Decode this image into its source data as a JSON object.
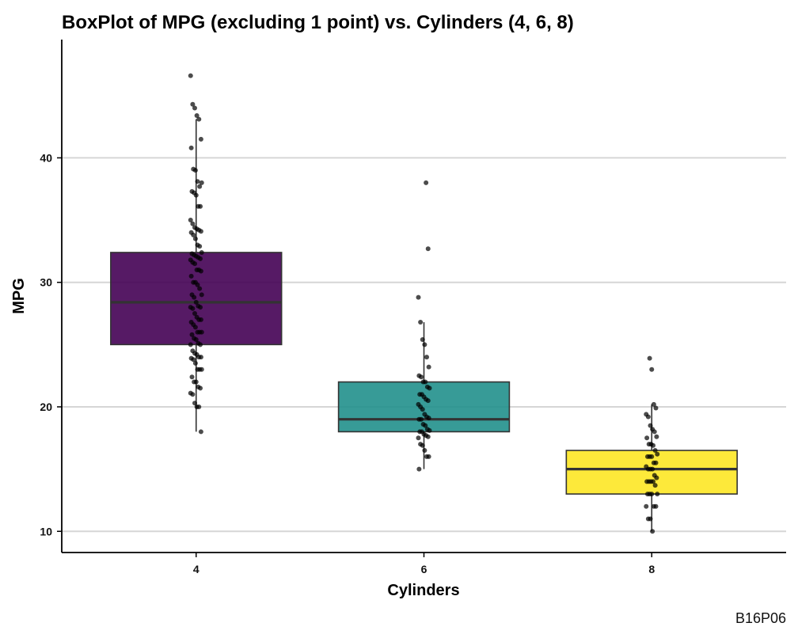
{
  "chart_data": {
    "type": "box",
    "title": "BoxPlot of MPG (excluding 1 point) vs. Cylinders (4, 6, 8)",
    "xlabel": "Cylinders",
    "ylabel": "MPG",
    "caption": "B16P06",
    "categories": [
      "4",
      "6",
      "8"
    ],
    "ylim": [
      8.3,
      49.5
    ],
    "yticks": [
      10,
      20,
      30,
      40
    ],
    "grid": "horizontal major",
    "boxes": [
      {
        "category": "4",
        "color": "#440154",
        "q1": 25.0,
        "median": 28.4,
        "q3": 32.4,
        "whisker_low": 18.0,
        "whisker_high": 43.1
      },
      {
        "category": "6",
        "color": "#21908C",
        "q1": 18.0,
        "median": 19.0,
        "q3": 22.0,
        "whisker_low": 15.0,
        "whisker_high": 26.8
      },
      {
        "category": "8",
        "color": "#FDE725",
        "q1": 13.0,
        "median": 15.0,
        "q3": 16.5,
        "whisker_low": 10.0,
        "whisker_high": 20.2
      }
    ],
    "points": [
      {
        "category": "4",
        "y": [
          46.6,
          44.3,
          44.0,
          43.4,
          43.1,
          41.5,
          40.8,
          39.1,
          39.0,
          38.1,
          37.7,
          38.0,
          37.3,
          37.2,
          37.0,
          36.1,
          36.1,
          35.0,
          34.7,
          34.4,
          34.3,
          34.2,
          34.1,
          34.0,
          33.8,
          33.5,
          33.0,
          32.9,
          32.4,
          32.3,
          32.2,
          32.1,
          32.0,
          31.9,
          31.8,
          31.6,
          31.5,
          31.0,
          31.0,
          30.9,
          30.5,
          30.0,
          30.0,
          29.8,
          29.5,
          29.0,
          29.0,
          28.8,
          28.4,
          28.1,
          28.0,
          28.0,
          27.9,
          27.5,
          27.2,
          27.0,
          27.0,
          26.8,
          26.6,
          26.4,
          26.0,
          26.0,
          26.0,
          25.8,
          25.5,
          25.4,
          25.1,
          25.0,
          25.0,
          24.5,
          24.3,
          24.2,
          24.0,
          24.0,
          23.9,
          23.8,
          23.5,
          23.0,
          23.0,
          23.0,
          22.4,
          22.0,
          22.0,
          21.6,
          21.5,
          21.1,
          21.0,
          20.3,
          20.0,
          20.0,
          18.0
        ]
      },
      {
        "category": "6",
        "y": [
          38.0,
          32.7,
          28.8,
          26.8,
          25.4,
          25.0,
          24.0,
          23.2,
          22.5,
          22.4,
          22.0,
          22.0,
          21.6,
          21.5,
          21.0,
          21.0,
          20.8,
          20.6,
          20.5,
          20.2,
          20.0,
          19.8,
          19.4,
          19.2,
          19.1,
          19.0,
          19.0,
          18.6,
          18.5,
          18.2,
          18.1,
          18.0,
          18.0,
          17.8,
          17.7,
          17.6,
          17.5,
          17.0,
          16.9,
          16.5,
          16.0,
          16.0,
          15.0
        ]
      },
      {
        "category": "8",
        "y": [
          23.9,
          23.0,
          20.2,
          19.9,
          19.4,
          19.2,
          18.5,
          18.2,
          18.0,
          17.6,
          17.5,
          17.0,
          17.0,
          16.9,
          16.5,
          16.2,
          16.0,
          16.0,
          16.0,
          15.5,
          15.5,
          15.2,
          15.0,
          15.0,
          15.0,
          14.5,
          14.3,
          14.0,
          14.0,
          14.0,
          14.0,
          13.7,
          13.0,
          13.0,
          13.0,
          13.0,
          12.0,
          12.0,
          12.0,
          11.0,
          11.0,
          10.0
        ]
      }
    ]
  }
}
